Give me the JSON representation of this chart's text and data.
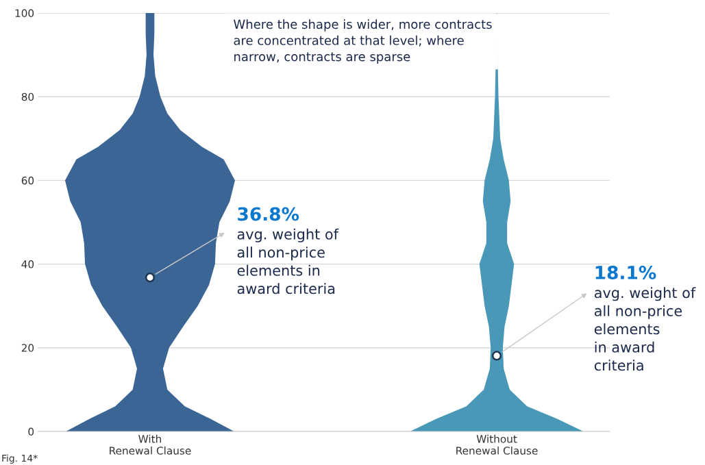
{
  "chart_data": {
    "type": "scatter",
    "categories": [
      "With\nRenewal Clause",
      "Without\nRenewal Clause"
    ],
    "ylim": [
      0,
      100
    ],
    "yticks": [
      0,
      20,
      40,
      60,
      80,
      100
    ],
    "grid": "y",
    "marker": "circle",
    "series": [
      {
        "color": "#ffffff",
        "x": [
          "With\nRenewal Clause",
          "Without\nRenewal Clause"
        ],
        "values": [
          36.8,
          18.1
        ]
      }
    ],
    "annotations": [
      "Where the shape is wider, more contracts\nare concentrated at that level; where\nnarrow, contracts are sparse",
      "36.8%",
      "avg. weight of\nall non-price\nelements in\naward criteria",
      "18.1%",
      "avg. weight of\nall non-price\nelements\nin award\ncriteria",
      "Fig. 14*"
    ]
  }
}
